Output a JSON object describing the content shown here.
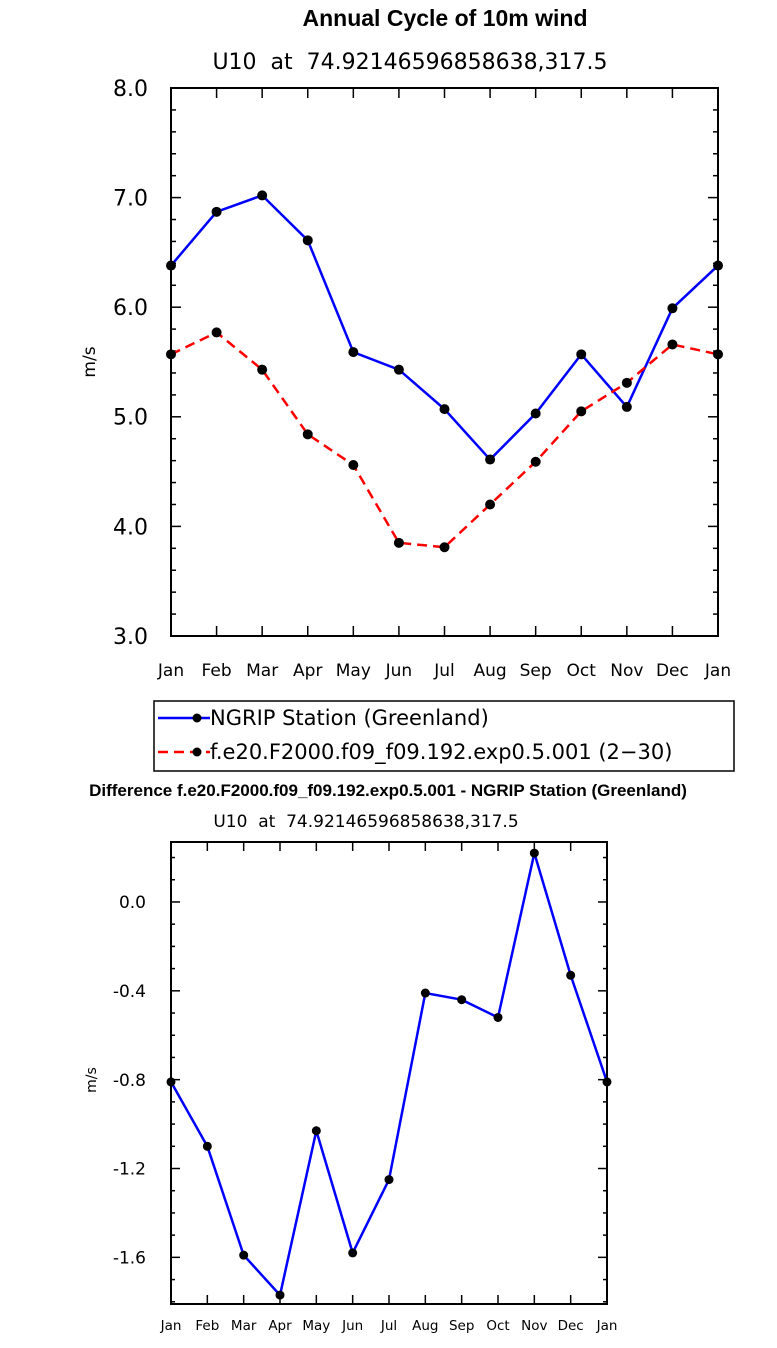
{
  "chart_data": [
    {
      "type": "line",
      "title": "Annual Cycle of 10m wind",
      "subtitle": "U10  at  74.92146596858638,317.5",
      "xlabel": "",
      "ylabel": "m/s",
      "categories": [
        "Jan",
        "Feb",
        "Mar",
        "Apr",
        "May",
        "Jun",
        "Jul",
        "Aug",
        "Sep",
        "Oct",
        "Nov",
        "Dec",
        "Jan"
      ],
      "ylim": [
        3.0,
        8.0
      ],
      "yticks": [
        "3.0",
        "4.0",
        "5.0",
        "6.0",
        "7.0",
        "8.0"
      ],
      "legend_position": "bottom",
      "series": [
        {
          "name": "NGRIP Station (Greenland)",
          "color": "#0000ff",
          "dash": "solid",
          "values": [
            6.38,
            6.87,
            7.02,
            6.61,
            5.59,
            5.43,
            5.07,
            4.61,
            5.03,
            5.57,
            5.09,
            5.99,
            6.38
          ]
        },
        {
          "name": "f.e20.F2000.f09_f09.192.exp0.5.001 (2−30)",
          "color": "#ff0000",
          "dash": "dashed",
          "values": [
            5.57,
            5.77,
            5.43,
            4.84,
            4.56,
            3.85,
            3.81,
            4.2,
            4.59,
            5.05,
            5.31,
            5.66,
            5.57
          ]
        }
      ]
    },
    {
      "type": "line",
      "title": "Difference f.e20.F2000.f09_f09.192.exp0.5.001 - NGRIP Station (Greenland)",
      "subtitle": "U10  at  74.92146596858638,317.5",
      "xlabel": "",
      "ylabel": "m/s",
      "categories": [
        "Jan",
        "Feb",
        "Mar",
        "Apr",
        "May",
        "Jun",
        "Jul",
        "Aug",
        "Sep",
        "Oct",
        "Nov",
        "Dec",
        "Jan"
      ],
      "ylim": [
        -1.81,
        0.27
      ],
      "yticks": [
        "-1.6",
        "-1.2",
        "-0.8",
        "-0.4",
        "0.0"
      ],
      "series": [
        {
          "name": "Difference",
          "color": "#0000ff",
          "dash": "solid",
          "values": [
            -0.81,
            -1.1,
            -1.59,
            -1.77,
            -1.03,
            -1.58,
            -1.25,
            -0.41,
            -0.44,
            -0.52,
            0.22,
            -0.33,
            -0.81
          ]
        }
      ]
    }
  ]
}
